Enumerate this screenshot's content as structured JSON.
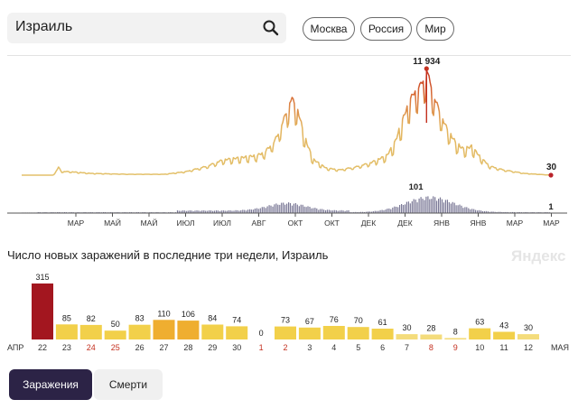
{
  "search": {
    "value": "Израиль"
  },
  "regions": [
    "Москва",
    "Россия",
    "Мир"
  ],
  "colors": {
    "line_low": "#e3c16a",
    "line_high": "#c4301f",
    "bars_small": "#7a7896",
    "bar_yellow": "#f2d04a",
    "bar_orange": "#efae30",
    "bar_pale": "#f4dc7c",
    "bar_peak": "#a3161f",
    "weekend_text": "#c4301f"
  },
  "trend": {
    "peak_label": "11 934",
    "last_label": "30",
    "small_peak_label": "101",
    "small_last_label": "1",
    "month_labels": [
      "МАР",
      "МАЙ",
      "МАЙ",
      "ИЮЛ",
      "ИЮЛ",
      "АВГ",
      "ОКТ",
      "ОКТ",
      "ДЕК",
      "ДЕК",
      "ЯНВ",
      "ЯНВ",
      "МАР",
      "МАР",
      "МАЙ"
    ]
  },
  "daily": {
    "title": "Число новых заражений в последние три недели, Израиль",
    "brand": "Яндекс",
    "start_label": "АПР",
    "end_label": "МАЯ",
    "days": [
      {
        "day": "22",
        "value": 315,
        "weekend": false
      },
      {
        "day": "23",
        "value": 85,
        "weekend": false
      },
      {
        "day": "24",
        "value": 82,
        "weekend": true
      },
      {
        "day": "25",
        "value": 50,
        "weekend": true
      },
      {
        "day": "26",
        "value": 83,
        "weekend": false
      },
      {
        "day": "27",
        "value": 110,
        "weekend": false
      },
      {
        "day": "28",
        "value": 106,
        "weekend": false
      },
      {
        "day": "29",
        "value": 84,
        "weekend": false
      },
      {
        "day": "30",
        "value": 74,
        "weekend": false
      },
      {
        "day": "1",
        "value": 0,
        "weekend": true
      },
      {
        "day": "2",
        "value": 73,
        "weekend": true
      },
      {
        "day": "3",
        "value": 67,
        "weekend": false
      },
      {
        "day": "4",
        "value": 76,
        "weekend": false
      },
      {
        "day": "5",
        "value": 70,
        "weekend": false
      },
      {
        "day": "6",
        "value": 61,
        "weekend": false
      },
      {
        "day": "7",
        "value": 30,
        "weekend": false
      },
      {
        "day": "8",
        "value": 28,
        "weekend": true
      },
      {
        "day": "9",
        "value": 8,
        "weekend": true
      },
      {
        "day": "10",
        "value": 63,
        "weekend": false
      },
      {
        "day": "11",
        "value": 43,
        "weekend": false
      },
      {
        "day": "12",
        "value": 30,
        "weekend": false
      }
    ]
  },
  "tabs": {
    "active": "Заражения",
    "inactive": "Смерти"
  }
}
